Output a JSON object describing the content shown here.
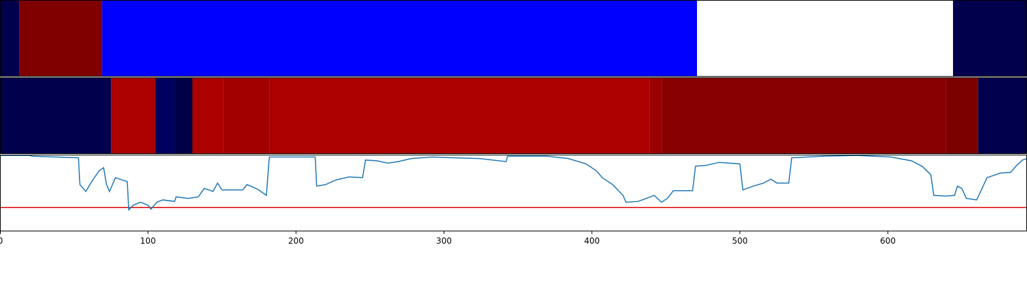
{
  "chart_data": [
    {
      "type": "segments",
      "xlim": [
        0,
        694
      ],
      "segments": [
        {
          "start": 0,
          "end": 13,
          "color": "#00004c"
        },
        {
          "start": 13,
          "end": 69,
          "color": "#800000"
        },
        {
          "start": 69,
          "end": 471,
          "color": "#0000ff"
        },
        {
          "start": 471,
          "end": 644,
          "color": "#ffffff"
        },
        {
          "start": 644,
          "end": 694,
          "color": "#00004c"
        }
      ]
    },
    {
      "type": "segments",
      "xlim": [
        0,
        694
      ],
      "segments": [
        {
          "start": 0,
          "end": 75,
          "color": "#00004c"
        },
        {
          "start": 75,
          "end": 105,
          "color": "#aa0000"
        },
        {
          "start": 105,
          "end": 118,
          "color": "#000060"
        },
        {
          "start": 118,
          "end": 130,
          "color": "#000048"
        },
        {
          "start": 130,
          "end": 151,
          "color": "#aa0000"
        },
        {
          "start": 151,
          "end": 182,
          "color": "#a20000"
        },
        {
          "start": 182,
          "end": 439,
          "color": "#aa0000"
        },
        {
          "start": 439,
          "end": 447,
          "color": "#9a0000"
        },
        {
          "start": 447,
          "end": 639,
          "color": "#880000"
        },
        {
          "start": 639,
          "end": 661,
          "color": "#7c0000"
        },
        {
          "start": 661,
          "end": 694,
          "color": "#00004c"
        }
      ]
    },
    {
      "type": "line",
      "xlim": [
        0,
        694
      ],
      "ylim": [
        0,
        1
      ],
      "xticks": [
        0,
        100,
        200,
        300,
        400,
        500,
        600
      ],
      "color": "#1f77b4",
      "hline": 0.31,
      "hline_color": "#e00000",
      "x": [
        0,
        20,
        22,
        53,
        54,
        58,
        62,
        67,
        70,
        72,
        74,
        78,
        81,
        86,
        87,
        90,
        95,
        100,
        102,
        106,
        110,
        118,
        119,
        127,
        134,
        138,
        144,
        147,
        150,
        157,
        164,
        167,
        174,
        180,
        182,
        213,
        214,
        220,
        227,
        236,
        245,
        247,
        255,
        262,
        269,
        278,
        292,
        306,
        324,
        342,
        343,
        370,
        384,
        396,
        403,
        407,
        414,
        421,
        423,
        431,
        437,
        442,
        447,
        451,
        455,
        468,
        470,
        477,
        486,
        500,
        502,
        509,
        516,
        521,
        525,
        533,
        535,
        556,
        579,
        602,
        616,
        623,
        629,
        631,
        639,
        645,
        647,
        650,
        653,
        660,
        667,
        676,
        683,
        687,
        691,
        694
      ],
      "values": [
        0.99,
        0.99,
        0.98,
        0.96,
        0.61,
        0.52,
        0.65,
        0.79,
        0.83,
        0.61,
        0.52,
        0.7,
        0.68,
        0.65,
        0.28,
        0.34,
        0.38,
        0.34,
        0.29,
        0.38,
        0.41,
        0.39,
        0.45,
        0.43,
        0.45,
        0.56,
        0.52,
        0.63,
        0.54,
        0.54,
        0.54,
        0.61,
        0.55,
        0.47,
        0.97,
        0.97,
        0.59,
        0.61,
        0.67,
        0.71,
        0.7,
        0.93,
        0.92,
        0.89,
        0.91,
        0.95,
        0.97,
        0.96,
        0.95,
        0.91,
        0.98,
        0.98,
        0.95,
        0.88,
        0.79,
        0.7,
        0.61,
        0.47,
        0.38,
        0.39,
        0.43,
        0.47,
        0.38,
        0.43,
        0.53,
        0.53,
        0.85,
        0.86,
        0.9,
        0.88,
        0.54,
        0.59,
        0.63,
        0.68,
        0.63,
        0.63,
        0.96,
        0.98,
        0.99,
        0.97,
        0.92,
        0.85,
        0.74,
        0.47,
        0.46,
        0.47,
        0.59,
        0.56,
        0.43,
        0.41,
        0.7,
        0.76,
        0.77,
        0.86,
        0.93,
        0.95
      ]
    }
  ]
}
